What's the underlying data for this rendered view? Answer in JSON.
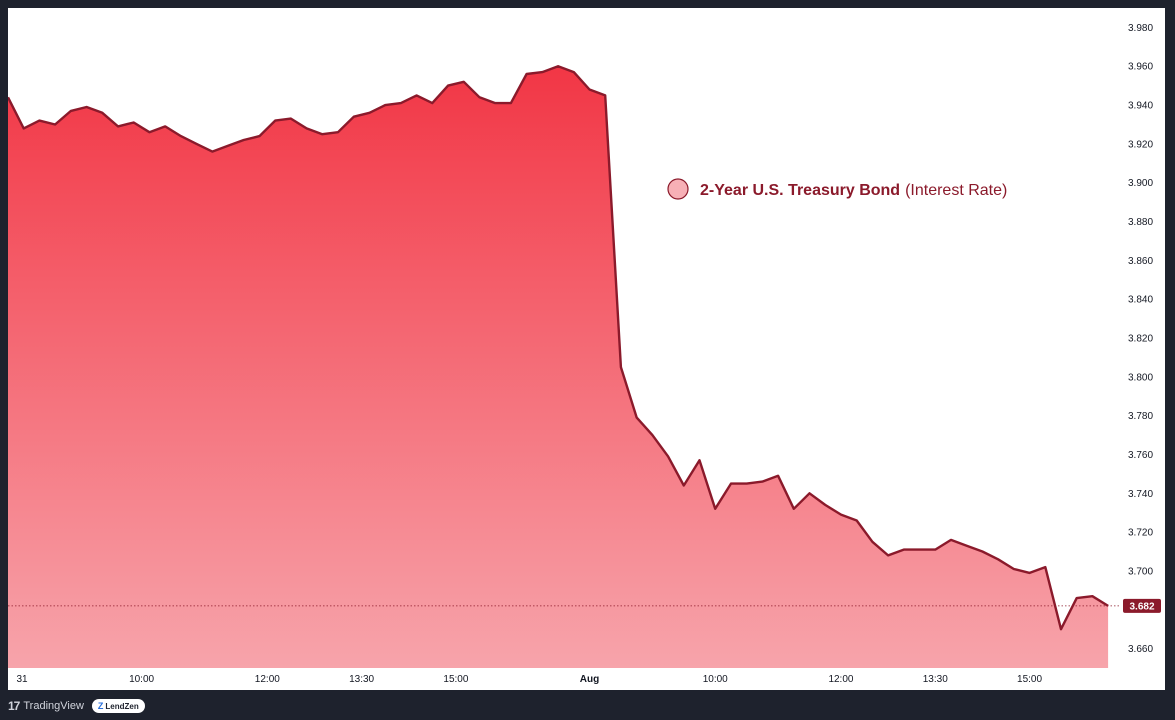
{
  "chart_data": {
    "type": "area",
    "title": "2-Year U.S. Treasury Bond",
    "subtitle": "(Interest Rate)",
    "current_value": "3.682",
    "y_ticks": [
      "3.980",
      "3.960",
      "3.940",
      "3.920",
      "3.900",
      "3.880",
      "3.860",
      "3.840",
      "3.820",
      "3.800",
      "3.780",
      "3.760",
      "3.740",
      "3.720",
      "3.700",
      "3.680",
      "3.660"
    ],
    "y_tick_values": [
      3.98,
      3.96,
      3.94,
      3.92,
      3.9,
      3.88,
      3.86,
      3.84,
      3.82,
      3.8,
      3.78,
      3.76,
      3.74,
      3.72,
      3.7,
      3.68,
      3.66
    ],
    "x_ticks": [
      "31",
      "10:00",
      "12:00",
      "13:30",
      "15:00",
      "Aug",
      "10:00",
      "12:00",
      "13:30",
      "15:00"
    ],
    "x_tick_positions": [
      0,
      8.5,
      16.5,
      22.5,
      28.5,
      37,
      45,
      53,
      59,
      65
    ],
    "ylim": [
      3.65,
      3.99
    ],
    "xlim": [
      0,
      70.5
    ],
    "x": [
      0,
      1,
      2,
      3,
      4,
      5,
      6,
      7,
      8,
      9,
      10,
      11,
      12,
      13,
      14,
      15,
      16,
      17,
      18,
      19,
      20,
      21,
      22,
      23,
      24,
      25,
      26,
      27,
      28,
      29,
      30,
      31,
      32,
      33,
      34,
      35,
      36,
      37,
      38,
      39,
      40,
      41,
      42,
      43,
      44,
      45,
      46,
      47,
      48,
      49,
      50,
      51,
      52,
      53,
      54,
      55,
      56,
      57,
      58,
      59,
      60,
      61,
      62,
      63,
      64,
      65,
      66,
      67,
      68,
      69,
      70
    ],
    "values": [
      3.944,
      3.928,
      3.932,
      3.93,
      3.937,
      3.939,
      3.936,
      3.929,
      3.931,
      3.926,
      3.929,
      3.924,
      3.92,
      3.916,
      3.919,
      3.922,
      3.924,
      3.932,
      3.933,
      3.928,
      3.925,
      3.926,
      3.934,
      3.936,
      3.94,
      3.941,
      3.945,
      3.941,
      3.95,
      3.952,
      3.944,
      3.941,
      3.941,
      3.956,
      3.957,
      3.96,
      3.957,
      3.948,
      3.945,
      3.805,
      3.779,
      3.77,
      3.759,
      3.744,
      3.757,
      3.732,
      3.745,
      3.745,
      3.746,
      3.749,
      3.732,
      3.74,
      3.734,
      3.729,
      3.726,
      3.715,
      3.708,
      3.711,
      3.711,
      3.711,
      3.716,
      3.713,
      3.71,
      3.706,
      3.701,
      3.699,
      3.702,
      3.67,
      3.686,
      3.687,
      3.682
    ],
    "colors": {
      "line": "#8b1a2b",
      "fill_top": "#f23645",
      "fill_bottom": "#f7a4ab",
      "marker": "#f7b0b6",
      "title": "#8b1a2b",
      "background": "#ffffff",
      "frame": "#1e222d"
    },
    "legend_position": "top-center"
  },
  "footer": {
    "brand": "TradingView",
    "brand_mark": "17",
    "badge": "LendZen",
    "badge_mark": "Z"
  }
}
